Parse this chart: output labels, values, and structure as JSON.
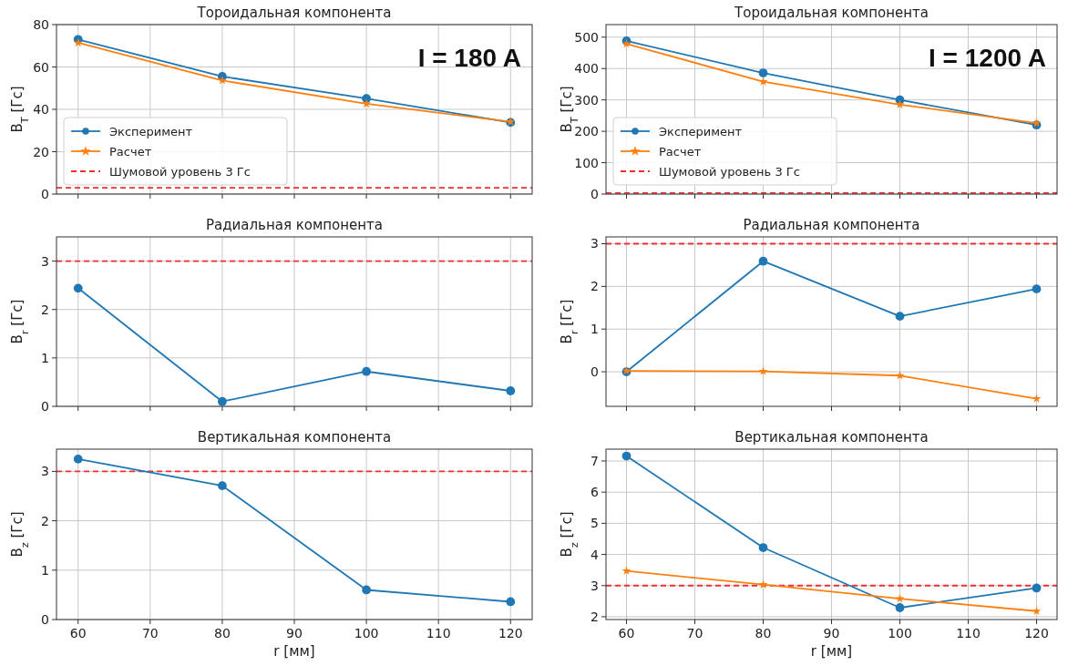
{
  "chart_data": [
    {
      "type": "line",
      "title": "Тороидальная компонента",
      "ylabel": "B$_{T}$ [Гс]",
      "xlim": [
        57,
        123
      ],
      "xticks": [
        60,
        70,
        80,
        90,
        100,
        110,
        120
      ],
      "ylim": [
        0,
        80
      ],
      "yticks": [
        0,
        20,
        40,
        60,
        80
      ],
      "tick_labels": "y",
      "grid": true,
      "legend": "bottom left",
      "annotations": [
        "I = 180 A"
      ],
      "x": [
        60,
        80,
        100,
        120
      ],
      "series": [
        {
          "name": "Эксперимент",
          "color": "#1f77b4",
          "marker": "circle",
          "values": [
            73,
            55.5,
            45.1,
            33.8
          ]
        },
        {
          "name": "Расчет",
          "color": "#ff7f0e",
          "marker": "star",
          "values": [
            71.4,
            53.6,
            42.6,
            34.1
          ]
        }
      ],
      "ref_lines": [
        {
          "axis": "y",
          "value": 3,
          "label": "Шумовой уровень 3 Гс",
          "color": "#f03030",
          "line_style": "dashed"
        }
      ]
    },
    {
      "type": "line",
      "title": "Тороидальная компонента",
      "ylabel": "B$_{T}$ [Гс]",
      "xlim": [
        57,
        123
      ],
      "xticks": [
        60,
        70,
        80,
        90,
        100,
        110,
        120
      ],
      "ylim": [
        0,
        540
      ],
      "yticks": [
        0,
        100,
        200,
        300,
        400,
        500
      ],
      "tick_labels": "y",
      "grid": true,
      "legend": "bottom left",
      "annotations": [
        "I = 1200 A"
      ],
      "x": [
        60,
        80,
        100,
        120
      ],
      "series": [
        {
          "name": "Эксперимент",
          "color": "#1f77b4",
          "marker": "circle",
          "values": [
            488,
            386,
            300,
            220
          ]
        },
        {
          "name": "Расчет",
          "color": "#ff7f0e",
          "marker": "star",
          "values": [
            479,
            358,
            285,
            226
          ]
        }
      ],
      "ref_lines": [
        {
          "axis": "y",
          "value": 3,
          "label": "Шумовой уровень 3 Гс",
          "color": "#f03030",
          "line_style": "dashed"
        }
      ]
    },
    {
      "type": "line",
      "title": "Радиальная компонента",
      "ylabel": "B$_{r}$ [Гс]",
      "xlim": [
        57,
        123
      ],
      "xticks": [
        60,
        70,
        80,
        90,
        100,
        110,
        120
      ],
      "ylim": [
        0,
        3.5
      ],
      "yticks": [
        0,
        1,
        2,
        3
      ],
      "tick_labels": "y",
      "grid": true,
      "x": [
        60,
        80,
        100,
        120
      ],
      "series": [
        {
          "color": "#1f77b4",
          "marker": "circle",
          "values": [
            2.44,
            0.1,
            0.72,
            0.32
          ]
        }
      ],
      "ref_lines": [
        {
          "axis": "y",
          "value": 3,
          "color": "#f03030",
          "line_style": "dashed"
        }
      ]
    },
    {
      "type": "line",
      "title": "Радиальная компонента",
      "ylabel": "B$_{r}$ [Гс]",
      "xlim": [
        57,
        123
      ],
      "xticks": [
        60,
        70,
        80,
        90,
        100,
        110,
        120
      ],
      "ylim": [
        -0.81,
        3.16
      ],
      "yticks": [
        0,
        1,
        2,
        3
      ],
      "tick_labels": "y",
      "grid": true,
      "x": [
        60,
        80,
        100,
        120
      ],
      "series": [
        {
          "color": "#1f77b4",
          "marker": "circle",
          "values": [
            0,
            2.59,
            1.3,
            1.94
          ]
        },
        {
          "color": "#ff7f0e",
          "marker": "star",
          "values": [
            0.02,
            0.01,
            -0.09,
            -0.63
          ]
        }
      ],
      "ref_lines": [
        {
          "axis": "y",
          "value": 3,
          "color": "#f03030",
          "line_style": "dashed"
        }
      ]
    },
    {
      "type": "line",
      "title": "Вертикальная компонента",
      "xlabel": "r [мм]",
      "ylabel": "B$_{z}$ [Гс]",
      "xlim": [
        57,
        123
      ],
      "xticks": [
        60,
        70,
        80,
        90,
        100,
        110,
        120
      ],
      "ylim": [
        0,
        3.45
      ],
      "yticks": [
        0,
        1,
        2,
        3
      ],
      "grid": true,
      "x": [
        60,
        80,
        100,
        120
      ],
      "series": [
        {
          "color": "#1f77b4",
          "marker": "circle",
          "values": [
            3.25,
            2.71,
            0.6,
            0.36
          ]
        }
      ],
      "ref_lines": [
        {
          "axis": "y",
          "value": 3,
          "color": "#f03030",
          "line_style": "dashed"
        }
      ]
    },
    {
      "type": "line",
      "title": "Вертикальная компонента",
      "xlabel": "r [мм]",
      "ylabel": "B$_{z}$ [Гс]",
      "xlim": [
        57,
        123
      ],
      "xticks": [
        60,
        70,
        80,
        90,
        100,
        110,
        120
      ],
      "ylim": [
        1.91,
        7.38
      ],
      "yticks": [
        2,
        3,
        4,
        5,
        6,
        7
      ],
      "grid": true,
      "x": [
        60,
        80,
        100,
        120
      ],
      "series": [
        {
          "color": "#1f77b4",
          "marker": "circle",
          "values": [
            7.16,
            4.22,
            2.29,
            2.92
          ]
        },
        {
          "color": "#ff7f0e",
          "marker": "star",
          "values": [
            3.47,
            3.03,
            2.58,
            2.18
          ]
        }
      ],
      "ref_lines": [
        {
          "axis": "y",
          "value": 3,
          "color": "#f03030",
          "line_style": "dashed"
        }
      ]
    }
  ]
}
